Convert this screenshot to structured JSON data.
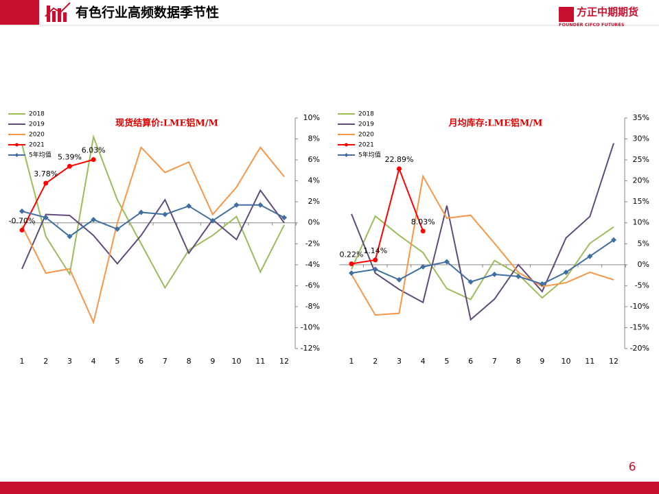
{
  "header": {
    "title": "有色行业高频数据季节性",
    "logo": "方正中期期货",
    "logo_en": "FOUNDER CIFCO FUTURES"
  },
  "page_number": "6",
  "chart_data": [
    {
      "type": "line",
      "title": "现货结算价:LME铝M/M",
      "categories": [
        "1",
        "2",
        "3",
        "4",
        "5",
        "6",
        "7",
        "8",
        "9",
        "10",
        "11",
        "12"
      ],
      "ylim": [
        -12,
        10
      ],
      "yticks": [
        {
          "value": -12,
          "label": "-12%"
        },
        {
          "value": -10,
          "label": "-10%"
        },
        {
          "value": -8,
          "label": "-8%"
        },
        {
          "value": -6,
          "label": "-6%"
        },
        {
          "value": -4,
          "label": "-4%"
        },
        {
          "value": -2,
          "label": "-2%"
        },
        {
          "value": 0,
          "label": "0%"
        },
        {
          "value": 2,
          "label": "2%"
        },
        {
          "value": 4,
          "label": "4%"
        },
        {
          "value": 6,
          "label": "6%"
        },
        {
          "value": 8,
          "label": "8%"
        },
        {
          "value": 10,
          "label": "10%"
        }
      ],
      "series": [
        {
          "name": "2018",
          "color": "#9bbb59",
          "values": [
            7.5,
            -1.3,
            -4.9,
            8.2,
            2.2,
            -2,
            -6.2,
            -2.6,
            -1.2,
            0.6,
            -4.7,
            -0.2
          ]
        },
        {
          "name": "2019",
          "color": "#604a7b",
          "values": [
            -4.4,
            0.8,
            0.7,
            -1.2,
            -3.9,
            -1.2,
            2.2,
            -2.9,
            0.3,
            -1.6,
            3.1,
            0
          ]
        },
        {
          "name": "2020",
          "color": "#f79646",
          "values": [
            -0.3,
            -4.8,
            -4.4,
            -9.5,
            0,
            7.2,
            4.8,
            5.8,
            0.8,
            3.4,
            7.2,
            4.4
          ]
        },
        {
          "name": "2021",
          "color": "#ff0000",
          "marker": "circle",
          "values": [
            -0.7,
            3.78,
            5.39,
            6.03,
            null,
            null,
            null,
            null,
            null,
            null,
            null,
            null
          ],
          "value_labels": [
            "-0.70%",
            "3.78%",
            "5.39%",
            "6.03%",
            null,
            null,
            null,
            null,
            null,
            null,
            null,
            null
          ]
        },
        {
          "name": "5年均值",
          "color": "#3f6fa0",
          "marker": "diamond",
          "values": [
            1.1,
            0.5,
            -1.3,
            0.3,
            -0.6,
            1.0,
            0.8,
            1.6,
            0.2,
            1.7,
            1.7,
            0.5
          ]
        }
      ]
    },
    {
      "type": "line",
      "title": "月均库存:LME铝M/M",
      "categories": [
        "1",
        "2",
        "3",
        "4",
        "5",
        "6",
        "7",
        "8",
        "9",
        "10",
        "11",
        "12"
      ],
      "ylim": [
        -20,
        35
      ],
      "yticks": [
        {
          "value": -20,
          "label": "-20%"
        },
        {
          "value": -15,
          "label": "-15%"
        },
        {
          "value": -10,
          "label": "-10%"
        },
        {
          "value": -5,
          "label": "-5%"
        },
        {
          "value": 0,
          "label": "0%"
        },
        {
          "value": 5,
          "label": "5%"
        },
        {
          "value": 10,
          "label": "10%"
        },
        {
          "value": 15,
          "label": "15%"
        },
        {
          "value": 20,
          "label": "20%"
        },
        {
          "value": 25,
          "label": "25%"
        },
        {
          "value": 30,
          "label": "30%"
        },
        {
          "value": 35,
          "label": "35%"
        }
      ],
      "series": [
        {
          "name": "2018",
          "color": "#9bbb59",
          "values": [
            -1.1,
            11.6,
            7,
            2.9,
            -5.7,
            -8.3,
            1,
            -2.3,
            -7.9,
            -3.1,
            5.1,
            9
          ]
        },
        {
          "name": "2019",
          "color": "#604a7b",
          "values": [
            12.1,
            -2,
            -5.9,
            -9,
            14.1,
            -13.1,
            -8.2,
            0,
            -6.4,
            6.4,
            11.5,
            29
          ]
        },
        {
          "name": "2020",
          "color": "#f79646",
          "values": [
            -2.3,
            -12,
            -11.6,
            21.1,
            11.1,
            11.8,
            5.1,
            -1.8,
            -5.2,
            -4.3,
            -1.8,
            -3.6
          ]
        },
        {
          "name": "2021",
          "color": "#ff0000",
          "marker": "circle",
          "values": [
            0.22,
            1.14,
            22.89,
            8.03,
            null,
            null,
            null,
            null,
            null,
            null,
            null,
            null
          ],
          "value_labels": [
            "0.22%",
            "1.14%",
            "22.89%",
            "8.03%",
            null,
            null,
            null,
            null,
            null,
            null,
            null,
            null
          ]
        },
        {
          "name": "5年均值",
          "color": "#3f6fa0",
          "marker": "diamond",
          "values": [
            -2,
            -1.1,
            -3.6,
            -0.5,
            0.7,
            -4.1,
            -2.3,
            -2.8,
            -4.6,
            -1.8,
            2,
            5.9
          ]
        }
      ]
    }
  ]
}
